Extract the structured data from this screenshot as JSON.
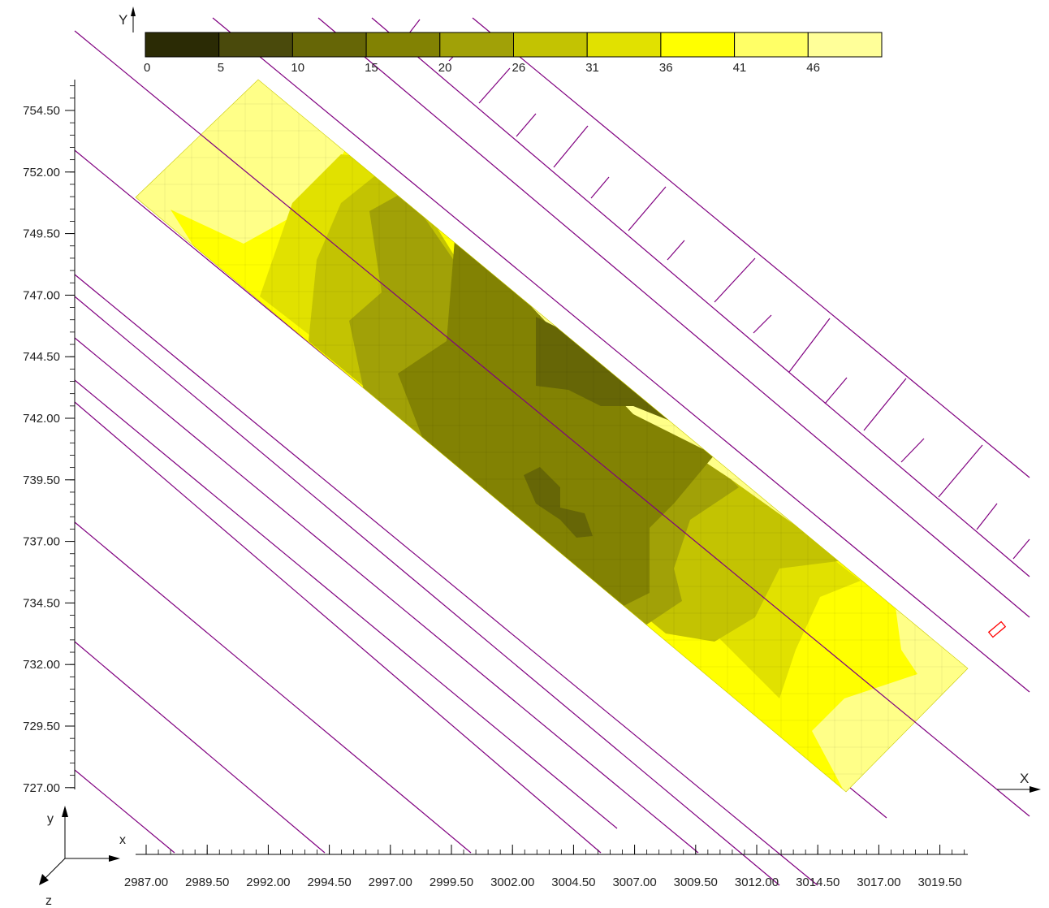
{
  "chart_data": {
    "type": "heatmap",
    "title": "",
    "xlabel": "X",
    "ylabel": "Y",
    "xlim": [
      2986.0,
      3021.0
    ],
    "ylim": [
      726.5,
      755.5
    ],
    "x_ticks": [
      "2987.00",
      "2989.50",
      "2992.00",
      "2994.50",
      "2997.00",
      "2999.50",
      "3002.00",
      "3004.50",
      "3007.00",
      "3009.50",
      "3012.00",
      "3014.50",
      "3017.00",
      "3019.50"
    ],
    "x_tick_values": [
      2987.0,
      2989.5,
      2992.0,
      2994.5,
      2997.0,
      2999.5,
      3002.0,
      3004.5,
      3007.0,
      3009.5,
      3012.0,
      3014.5,
      3017.0,
      3019.5
    ],
    "y_ticks": [
      "754.50",
      "752.00",
      "749.50",
      "747.00",
      "744.50",
      "742.00",
      "739.50",
      "737.00",
      "734.50",
      "732.00",
      "729.50",
      "727.00"
    ],
    "y_tick_values": [
      754.5,
      752.0,
      749.5,
      747.0,
      744.5,
      742.0,
      739.5,
      737.0,
      734.5,
      732.0,
      729.5,
      727.0
    ],
    "colorbar": {
      "labels": [
        "0",
        "5",
        "10",
        "15",
        "20",
        "26",
        "31",
        "36",
        "41",
        "46"
      ],
      "colors": [
        "#2b2b05",
        "#4a4a0c",
        "#666606",
        "#828203",
        "#a1a107",
        "#c3c302",
        "#e1e100",
        "#ffff00",
        "#ffff66",
        "#ffff99"
      ]
    },
    "field_extent": {
      "corners": [
        [
          2989.4,
          750.5
        ],
        [
          2995.1,
          755.5
        ],
        [
          3020.2,
          731.9
        ],
        [
          3015.3,
          726.8
        ]
      ]
    },
    "contour_levels": [
      {
        "min": 41,
        "color": "#ffff88",
        "note": "outer ends"
      },
      {
        "min": 36,
        "color": "#ffff00"
      },
      {
        "min": 31,
        "color": "#e1e100"
      },
      {
        "min": 26,
        "color": "#c3c302"
      },
      {
        "min": 20,
        "color": "#a1a107"
      },
      {
        "min": 15,
        "color": "#828203"
      },
      {
        "min": 10,
        "color": "#666606"
      }
    ],
    "axis_triad": {
      "x": "x",
      "y": "y",
      "z": "z"
    },
    "grid": false
  }
}
